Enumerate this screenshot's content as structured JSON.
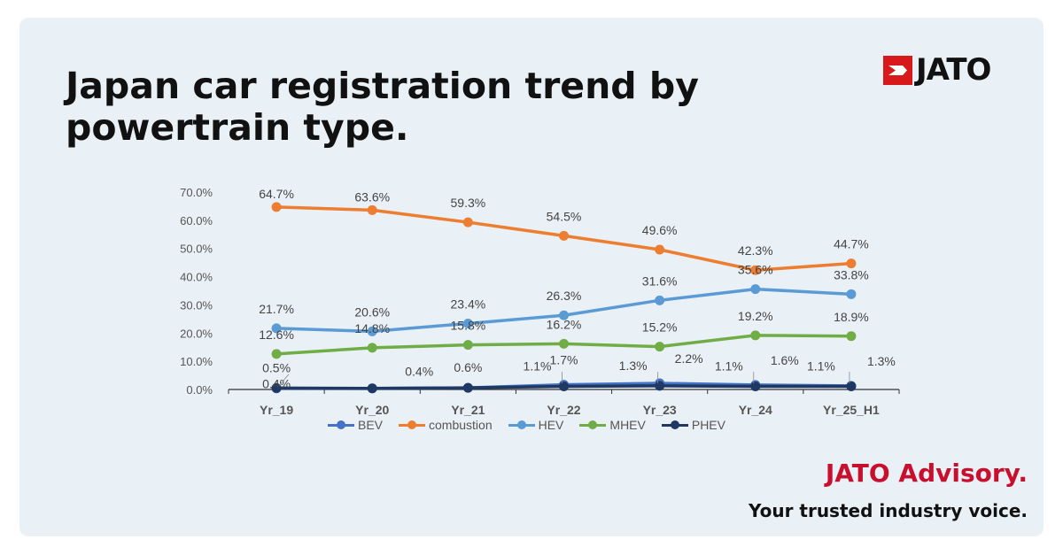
{
  "header": {
    "title": "Japan car registration trend by powertrain type.",
    "logo_text": "JATO"
  },
  "footer": {
    "brand": "JATO Advisory.",
    "slogan": "Your trusted industry voice."
  },
  "colors": {
    "background": "#e9f1f6",
    "brand_red": "#c8102e",
    "BEV": "#4472c4",
    "combustion": "#ed7d31",
    "HEV": "#5b9bd5",
    "MHEV": "#70ad47",
    "PHEV": "#1f3864"
  },
  "chart_data": {
    "type": "line",
    "title": "",
    "xlabel": "",
    "ylabel": "",
    "categories": [
      "Yr_19",
      "Yr_20",
      "Yr_21",
      "Yr_22",
      "Yr_23",
      "Yr_24",
      "Yr_25_H1"
    ],
    "ylim": [
      0,
      70
    ],
    "yticks": [
      "0.0%",
      "10.0%",
      "20.0%",
      "30.0%",
      "40.0%",
      "50.0%",
      "60.0%",
      "70.0%"
    ],
    "grid": false,
    "legend": "bottom",
    "series": [
      {
        "name": "BEV",
        "values": [
          0.4,
          0.4,
          0.6,
          1.7,
          2.2,
          1.6,
          1.3
        ],
        "labels": [
          "0.4%",
          "",
          "",
          "1.7%",
          "2.2%",
          "1.6%",
          "1.3%"
        ]
      },
      {
        "name": "combustion",
        "values": [
          64.7,
          63.6,
          59.3,
          54.5,
          49.6,
          42.3,
          44.7
        ],
        "labels": [
          "64.7%",
          "63.6%",
          "59.3%",
          "54.5%",
          "49.6%",
          "42.3%",
          "44.7%"
        ]
      },
      {
        "name": "HEV",
        "values": [
          21.7,
          20.6,
          23.4,
          26.3,
          31.6,
          35.6,
          33.8
        ],
        "labels": [
          "21.7%",
          "20.6%",
          "23.4%",
          "26.3%",
          "31.6%",
          "35.6%",
          "33.8%"
        ]
      },
      {
        "name": "MHEV",
        "values": [
          12.6,
          14.8,
          15.8,
          16.2,
          15.2,
          19.2,
          18.9
        ],
        "labels": [
          "12.6%",
          "14.8%",
          "15.8%",
          "16.2%",
          "15.2%",
          "19.2%",
          "18.9%"
        ]
      },
      {
        "name": "PHEV",
        "values": [
          0.5,
          0.4,
          0.6,
          1.1,
          1.3,
          1.1,
          1.1
        ],
        "labels": [
          "0.5%",
          "0.4%",
          "0.6%",
          "1.1%",
          "1.3%",
          "1.1%",
          "1.1%"
        ]
      }
    ]
  }
}
